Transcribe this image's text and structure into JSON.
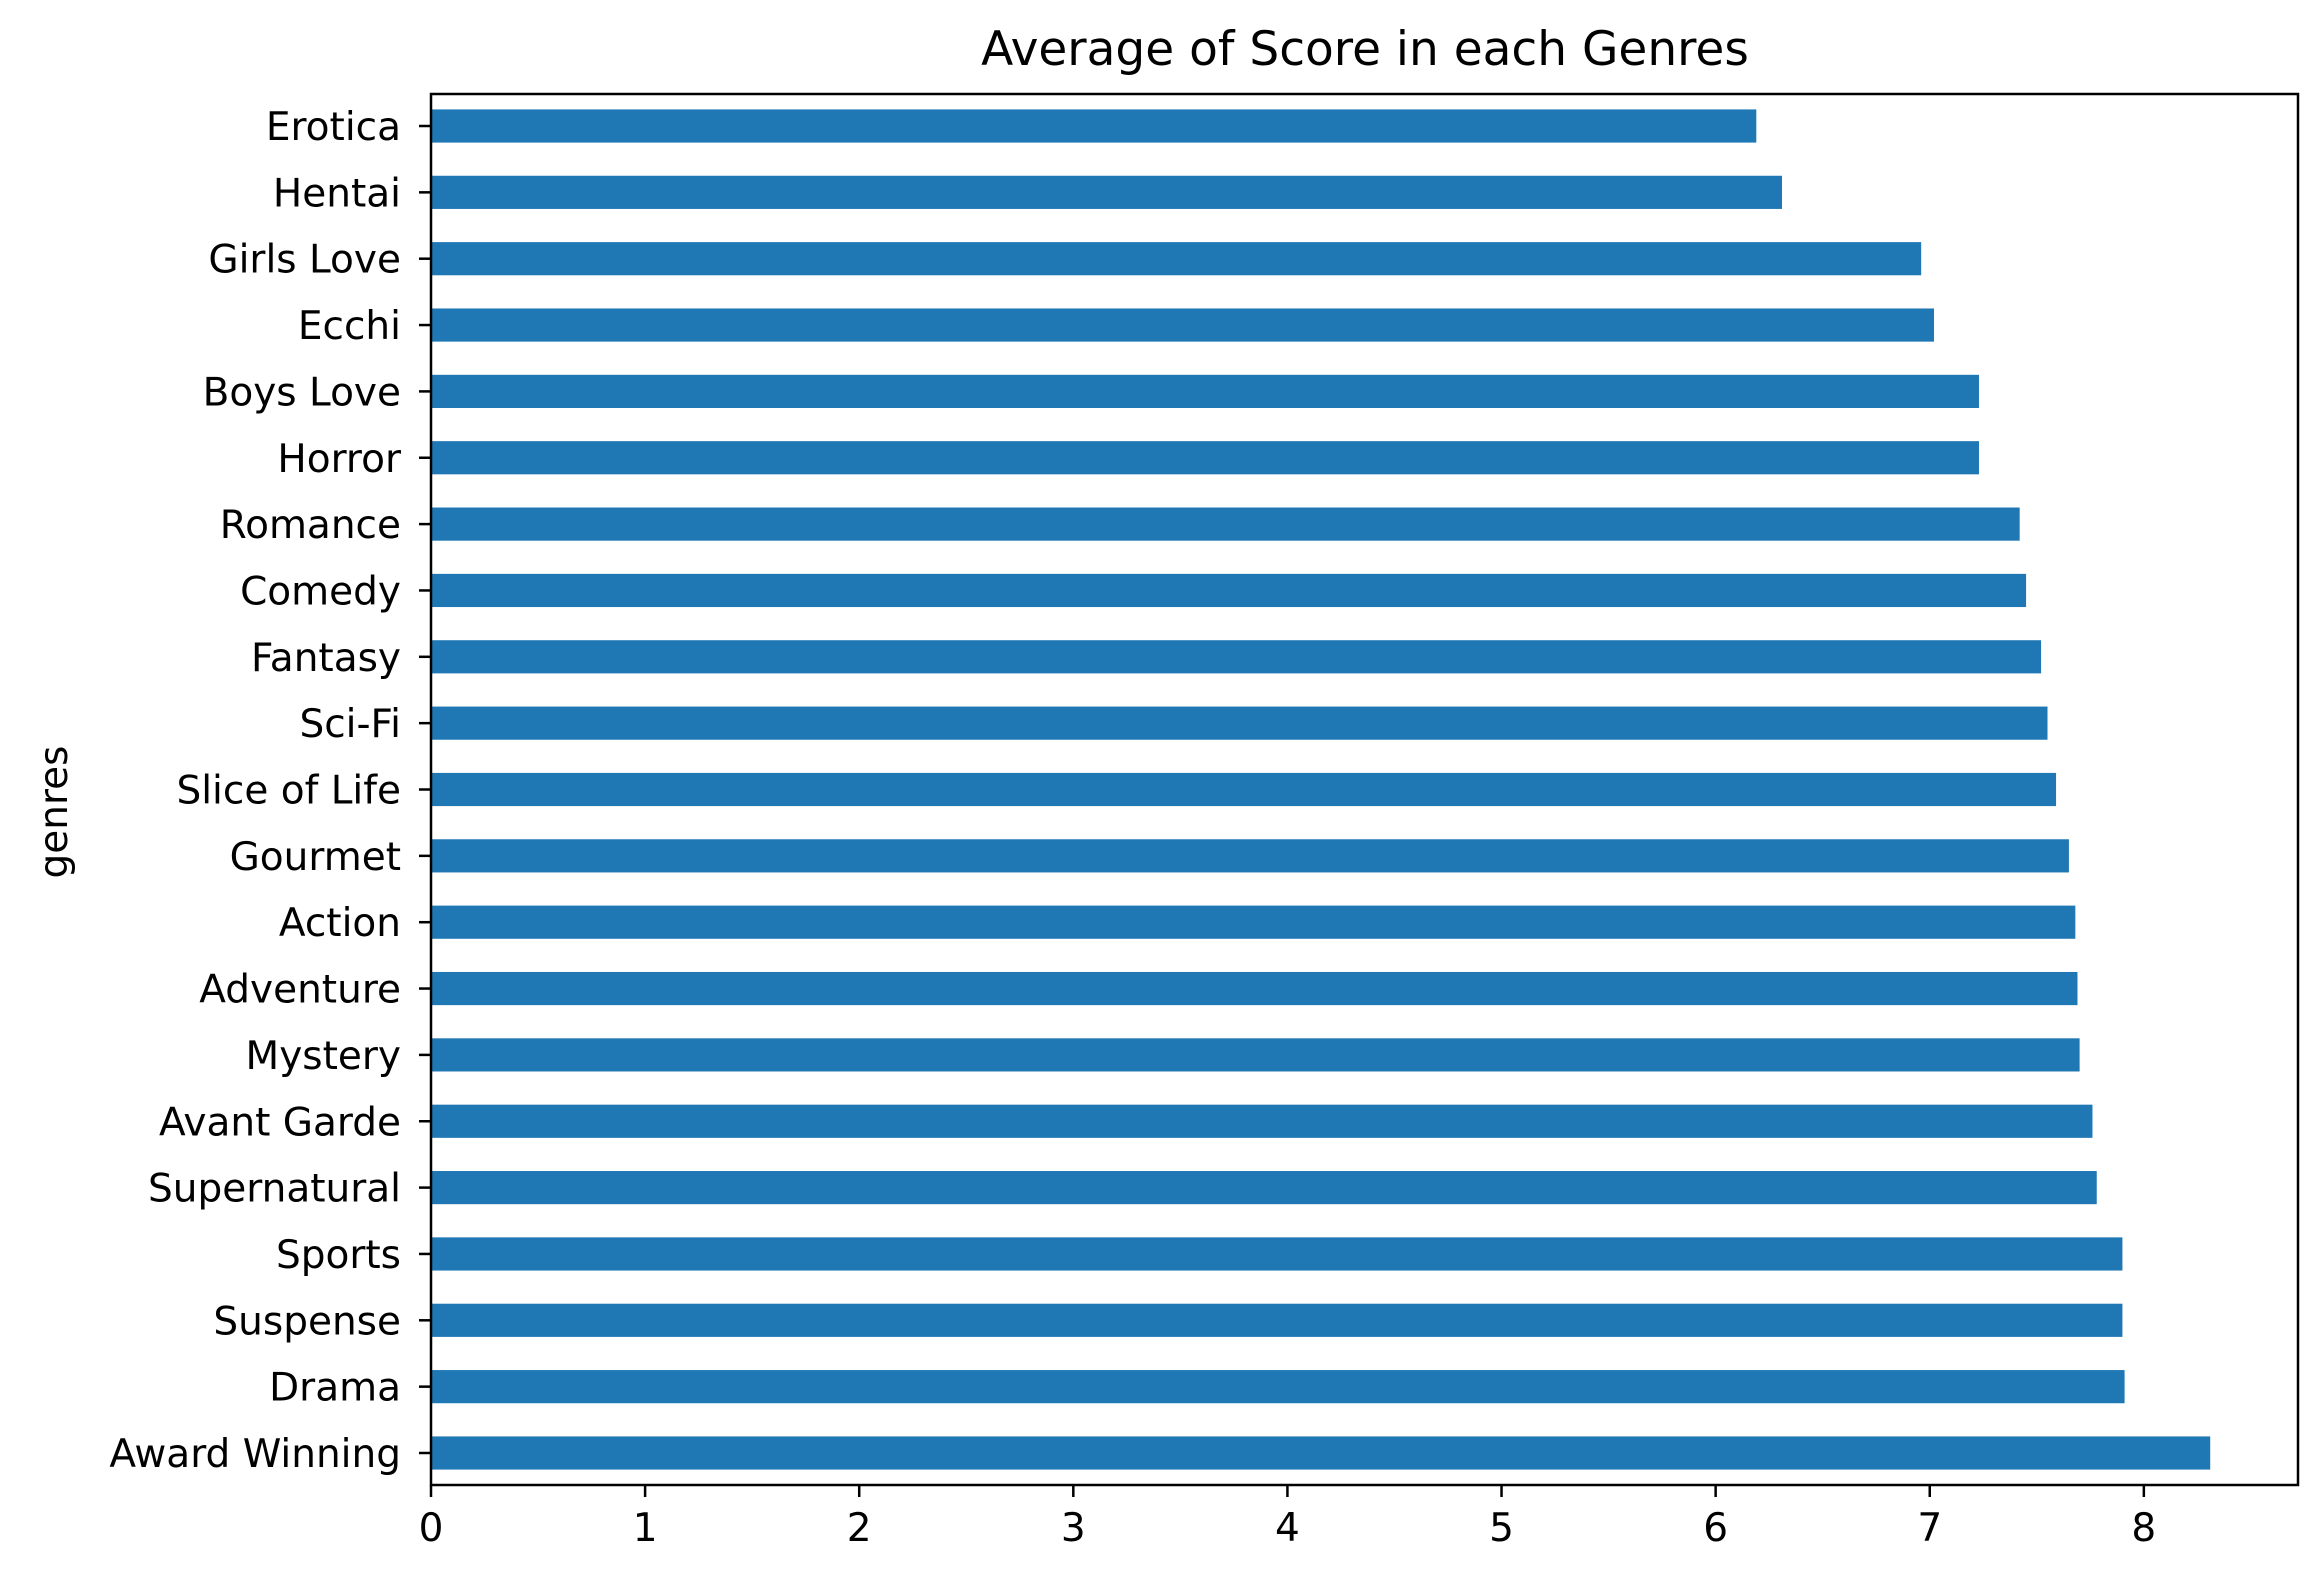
{
  "chart_data": {
    "type": "bar",
    "orientation": "horizontal",
    "title": "Average of Score in each Genres",
    "xlabel": "",
    "ylabel": "genres",
    "categories": [
      "Erotica",
      "Hentai",
      "Girls Love",
      "Ecchi",
      "Boys Love",
      "Horror",
      "Romance",
      "Comedy",
      "Fantasy",
      "Sci-Fi",
      "Slice of Life",
      "Gourmet",
      "Action",
      "Adventure",
      "Mystery",
      "Avant Garde",
      "Supernatural",
      "Sports",
      "Suspense",
      "Drama",
      "Award Winning"
    ],
    "values": [
      6.19,
      6.31,
      6.96,
      7.02,
      7.23,
      7.23,
      7.42,
      7.45,
      7.52,
      7.55,
      7.59,
      7.65,
      7.68,
      7.69,
      7.7,
      7.76,
      7.78,
      7.9,
      7.9,
      7.91,
      8.31
    ],
    "xlim": [
      0,
      8.72
    ],
    "xticks": [
      "0",
      "1",
      "2",
      "3",
      "4",
      "5",
      "6",
      "7",
      "8"
    ],
    "grid": false,
    "legend": false,
    "bar_color": "#1f77b4"
  }
}
